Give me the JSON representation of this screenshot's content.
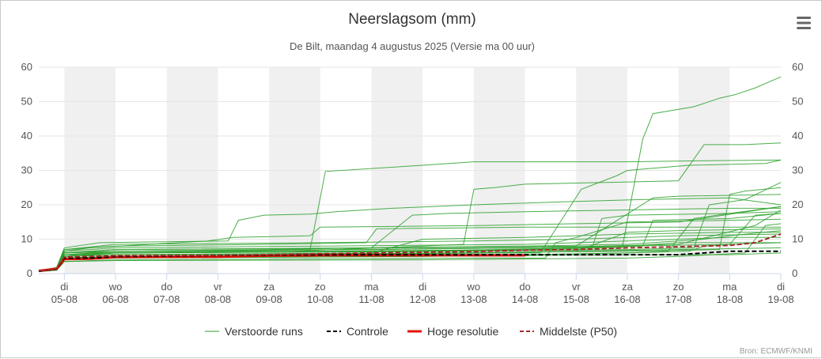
{
  "chart_data": {
    "type": "line",
    "title": "Neerslagsom (mm)",
    "subtitle": "De Bilt, maandag 4 augustus 2025 (Versie ma 00 uur)",
    "credit": "Bron: ECMWF/KNMI",
    "ylim": [
      0,
      60
    ],
    "yticks": [
      0,
      10,
      20,
      30,
      40,
      50,
      60
    ],
    "xlim": [
      4.5,
      19.0
    ],
    "x_labels": [
      {
        "day": "di",
        "date": "05-08",
        "x": 5
      },
      {
        "day": "wo",
        "date": "06-08",
        "x": 6
      },
      {
        "day": "do",
        "date": "07-08",
        "x": 7
      },
      {
        "day": "vr",
        "date": "08-08",
        "x": 8
      },
      {
        "day": "za",
        "date": "09-08",
        "x": 9
      },
      {
        "day": "zo",
        "date": "10-08",
        "x": 10
      },
      {
        "day": "ma",
        "date": "11-08",
        "x": 11
      },
      {
        "day": "di",
        "date": "12-08",
        "x": 12
      },
      {
        "day": "wo",
        "date": "13-08",
        "x": 13
      },
      {
        "day": "do",
        "date": "14-08",
        "x": 14
      },
      {
        "day": "vr",
        "date": "15-08",
        "x": 15
      },
      {
        "day": "za",
        "date": "16-08",
        "x": 16
      },
      {
        "day": "zo",
        "date": "17-08",
        "x": 17
      },
      {
        "day": "ma",
        "date": "18-08",
        "x": 18
      },
      {
        "day": "di",
        "date": "19-08",
        "x": 19
      }
    ],
    "shaded_day_starts": [
      5,
      7,
      9,
      11,
      13,
      15,
      17
    ],
    "legend": [
      {
        "name": "Verstoorde runs",
        "color": "#2ca02c",
        "style": "solid-thin"
      },
      {
        "name": "Controle",
        "color": "#000000",
        "style": "dashed"
      },
      {
        "name": "Hoge resolutie",
        "color": "#e3120b",
        "style": "solid-thick"
      },
      {
        "name": "Middelste (P50)",
        "color": "#a52a2a",
        "style": "dashed"
      }
    ],
    "colors": {
      "ensemble": "#2ca02c",
      "control": "#000000",
      "highres": "#e3120b",
      "median": "#a52a2a",
      "shade": "#f0f0f0",
      "grid": "#e6e6e6"
    },
    "ensemble": [
      [
        [
          4.5,
          0.8
        ],
        [
          4.85,
          1.5
        ],
        [
          5,
          6.5
        ],
        [
          5.5,
          7.5
        ],
        [
          7.8,
          9.5
        ],
        [
          8.3,
          10.5
        ],
        [
          9.8,
          11
        ],
        [
          10,
          13.5
        ],
        [
          13.2,
          14
        ],
        [
          15,
          14.5
        ],
        [
          17,
          15
        ],
        [
          19,
          19.5
        ]
      ],
      [
        [
          4.5,
          0.7
        ],
        [
          4.85,
          1.2
        ],
        [
          5,
          5
        ],
        [
          5.5,
          6
        ],
        [
          8.3,
          6.5
        ],
        [
          9.8,
          7
        ],
        [
          10.1,
          29.7
        ],
        [
          12,
          31.5
        ],
        [
          13,
          32.5
        ],
        [
          16,
          32.5
        ],
        [
          17.5,
          32.8
        ],
        [
          19,
          33
        ]
      ],
      [
        [
          4.5,
          0.9
        ],
        [
          4.85,
          1.8
        ],
        [
          5,
          7.5
        ],
        [
          5.7,
          9
        ],
        [
          8.2,
          9.5
        ],
        [
          8.4,
          15.5
        ],
        [
          8.9,
          17
        ],
        [
          9.8,
          17.3
        ],
        [
          10.3,
          18
        ],
        [
          11.4,
          19
        ],
        [
          13,
          20
        ],
        [
          15,
          21
        ],
        [
          16.2,
          21.5
        ],
        [
          18,
          22
        ],
        [
          19,
          20
        ]
      ],
      [
        [
          4.5,
          0.6
        ],
        [
          4.85,
          1
        ],
        [
          5,
          4.5
        ],
        [
          6,
          5
        ],
        [
          10,
          5.5
        ],
        [
          13.4,
          6
        ],
        [
          14.3,
          6
        ],
        [
          15.1,
          24.5
        ],
        [
          15.8,
          28.5
        ],
        [
          16,
          30
        ],
        [
          17.2,
          31.5
        ],
        [
          18.7,
          32
        ],
        [
          19,
          33
        ]
      ],
      [
        [
          4.5,
          0.8
        ],
        [
          4.85,
          1.4
        ],
        [
          5,
          5.5
        ],
        [
          6,
          6
        ],
        [
          11,
          6.5
        ],
        [
          14,
          7
        ],
        [
          15.6,
          7.5
        ],
        [
          15.9,
          7.5
        ],
        [
          16.3,
          39
        ],
        [
          16.5,
          46.5
        ],
        [
          17.3,
          48.5
        ],
        [
          17.8,
          51
        ],
        [
          18.1,
          52
        ],
        [
          18.5,
          54
        ],
        [
          19,
          57.2
        ]
      ],
      [
        [
          4.5,
          0.7
        ],
        [
          4.85,
          1.3
        ],
        [
          5,
          5
        ],
        [
          6,
          6
        ],
        [
          9.5,
          6.5
        ],
        [
          12,
          8
        ],
        [
          12.8,
          8.5
        ],
        [
          13,
          24.5
        ],
        [
          13.4,
          25
        ],
        [
          14,
          26
        ],
        [
          15.6,
          26.5
        ],
        [
          17,
          27
        ],
        [
          17.5,
          37.5
        ],
        [
          18.3,
          37.5
        ],
        [
          19,
          38
        ]
      ],
      [
        [
          4.5,
          0.6
        ],
        [
          4.85,
          1.1
        ],
        [
          5,
          4
        ],
        [
          6,
          4.5
        ],
        [
          12,
          5
        ],
        [
          14,
          5.5
        ],
        [
          16,
          6
        ],
        [
          16.8,
          6.5
        ],
        [
          17.3,
          16
        ],
        [
          18,
          17.5
        ],
        [
          19,
          18
        ]
      ],
      [
        [
          4.5,
          0.8
        ],
        [
          4.85,
          1.5
        ],
        [
          5,
          6
        ],
        [
          6,
          6.5
        ],
        [
          9,
          7
        ],
        [
          11,
          7.5
        ],
        [
          11.8,
          17
        ],
        [
          12.5,
          17.5
        ],
        [
          14,
          18
        ],
        [
          16,
          18.5
        ],
        [
          18,
          19
        ],
        [
          19,
          19
        ]
      ],
      [
        [
          4.5,
          0.7
        ],
        [
          4.85,
          1.2
        ],
        [
          5,
          5
        ],
        [
          6,
          5.5
        ],
        [
          11,
          6
        ],
        [
          12,
          10
        ],
        [
          14,
          10.5
        ],
        [
          16,
          11.5
        ],
        [
          18,
          12
        ],
        [
          19,
          12
        ]
      ],
      [
        [
          4.5,
          0.9
        ],
        [
          4.85,
          1.7
        ],
        [
          5,
          7
        ],
        [
          6,
          8
        ],
        [
          9,
          8.5
        ],
        [
          10.9,
          9
        ],
        [
          11.1,
          13
        ],
        [
          14,
          13.5
        ],
        [
          17,
          13.5
        ],
        [
          19,
          13.5
        ]
      ],
      [
        [
          4.5,
          0.6
        ],
        [
          4.85,
          1
        ],
        [
          5,
          3.5
        ],
        [
          6,
          4
        ],
        [
          13,
          4.5
        ],
        [
          14.4,
          4.5
        ],
        [
          14.6,
          9
        ],
        [
          15,
          10.5
        ],
        [
          16,
          15
        ],
        [
          18,
          15.5
        ],
        [
          19,
          15.8
        ]
      ],
      [
        [
          4.5,
          0.7
        ],
        [
          4.85,
          1.3
        ],
        [
          5,
          5.5
        ],
        [
          6,
          6
        ],
        [
          12,
          6.5
        ],
        [
          15.3,
          7
        ],
        [
          15.5,
          16
        ],
        [
          16,
          17
        ],
        [
          18,
          17.5
        ],
        [
          19,
          19.5
        ]
      ],
      [
        [
          4.5,
          0.8
        ],
        [
          4.85,
          1.4
        ],
        [
          5,
          5.5
        ],
        [
          6,
          6
        ],
        [
          13,
          6.5
        ],
        [
          16,
          7
        ],
        [
          17.3,
          7.5
        ],
        [
          17.6,
          20
        ],
        [
          18.3,
          21.5
        ],
        [
          19,
          26.5
        ]
      ],
      [
        [
          4.5,
          0.6
        ],
        [
          4.85,
          1.1
        ],
        [
          5,
          4.5
        ],
        [
          6,
          5
        ],
        [
          14,
          5.5
        ],
        [
          16,
          6
        ],
        [
          17.2,
          6.5
        ],
        [
          17.5,
          8
        ],
        [
          18,
          8.5
        ],
        [
          18.5,
          17
        ],
        [
          19,
          17.5
        ]
      ],
      [
        [
          4.5,
          0.7
        ],
        [
          4.85,
          1.3
        ],
        [
          5,
          5
        ],
        [
          6,
          5.5
        ],
        [
          12.5,
          6
        ],
        [
          16,
          6.5
        ],
        [
          17.8,
          7
        ],
        [
          18,
          23
        ],
        [
          18.3,
          24
        ],
        [
          19,
          25
        ]
      ],
      [
        [
          4.5,
          0.8
        ],
        [
          4.85,
          1.5
        ],
        [
          5,
          6
        ],
        [
          6,
          7
        ],
        [
          11,
          7.5
        ],
        [
          14,
          8
        ],
        [
          16,
          8.5
        ],
        [
          17.5,
          10
        ],
        [
          18,
          11
        ],
        [
          19,
          12.5
        ]
      ],
      [
        [
          4.5,
          0.6
        ],
        [
          4.85,
          1
        ],
        [
          5,
          3.5
        ],
        [
          6,
          3.8
        ],
        [
          12,
          4
        ],
        [
          16,
          4.5
        ],
        [
          17,
          5
        ],
        [
          18.3,
          6
        ],
        [
          18.7,
          14
        ],
        [
          19,
          14.5
        ]
      ],
      [
        [
          4.5,
          0.7
        ],
        [
          4.85,
          1.2
        ],
        [
          5,
          4.5
        ],
        [
          6,
          5
        ],
        [
          10,
          5.5
        ],
        [
          13,
          6
        ],
        [
          15,
          6.5
        ],
        [
          16,
          12
        ],
        [
          17,
          12.5
        ],
        [
          19,
          13
        ]
      ],
      [
        [
          4.5,
          0.8
        ],
        [
          4.85,
          1.5
        ],
        [
          5,
          6.5
        ],
        [
          6,
          7.5
        ],
        [
          10,
          8
        ],
        [
          14,
          8.5
        ],
        [
          16,
          9.5
        ],
        [
          17,
          10
        ],
        [
          18,
          10.5
        ],
        [
          19,
          10.5
        ]
      ],
      [
        [
          4.5,
          0.7
        ],
        [
          4.85,
          1.3
        ],
        [
          5,
          5
        ],
        [
          6,
          6
        ],
        [
          10,
          6.5
        ],
        [
          14,
          7
        ],
        [
          16,
          8
        ],
        [
          17,
          9
        ],
        [
          18,
          9
        ],
        [
          19,
          9
        ]
      ],
      [
        [
          4.5,
          0.6
        ],
        [
          4.85,
          1.1
        ],
        [
          5,
          4
        ],
        [
          6,
          4.5
        ],
        [
          12,
          5
        ],
        [
          16,
          5.5
        ],
        [
          18,
          5.5
        ],
        [
          19,
          6
        ]
      ],
      [
        [
          4.5,
          0.9
        ],
        [
          4.85,
          1.6
        ],
        [
          5,
          7
        ],
        [
          6,
          8.5
        ],
        [
          10,
          9
        ],
        [
          13,
          9.5
        ],
        [
          15,
          10
        ],
        [
          17,
          11
        ],
        [
          19,
          11.5
        ]
      ],
      [
        [
          4.5,
          0.7
        ],
        [
          4.85,
          1.3
        ],
        [
          5,
          5.5
        ],
        [
          6,
          6
        ],
        [
          12,
          6.5
        ],
        [
          15,
          7.5
        ],
        [
          16.3,
          8
        ],
        [
          16.5,
          15.5
        ],
        [
          18,
          16
        ],
        [
          19,
          17.5
        ]
      ],
      [
        [
          4.5,
          0.8
        ],
        [
          4.85,
          1.4
        ],
        [
          5,
          6
        ],
        [
          6,
          6.5
        ],
        [
          11,
          7
        ],
        [
          14,
          7.5
        ],
        [
          16,
          8
        ],
        [
          18,
          8.5
        ],
        [
          19,
          9
        ]
      ],
      [
        [
          4.5,
          0.6
        ],
        [
          4.85,
          1.1
        ],
        [
          5,
          5
        ],
        [
          6,
          5.5
        ],
        [
          13,
          6
        ],
        [
          15,
          6.5
        ],
        [
          17,
          7
        ],
        [
          19,
          7.5
        ]
      ],
      [
        [
          4.5,
          0.7
        ],
        [
          4.85,
          1.2
        ],
        [
          5,
          5.5
        ],
        [
          6,
          6.5
        ],
        [
          11,
          7
        ],
        [
          14,
          7.5
        ],
        [
          17,
          8.5
        ],
        [
          18.5,
          14
        ],
        [
          19,
          18.5
        ]
      ],
      [
        [
          4.5,
          0.8
        ],
        [
          4.85,
          1.5
        ],
        [
          5,
          6
        ],
        [
          6,
          7
        ],
        [
          12,
          7.5
        ],
        [
          15,
          8
        ],
        [
          16.5,
          22
        ],
        [
          17,
          22.5
        ],
        [
          19,
          23
        ]
      ]
    ],
    "control": [
      [
        4.5,
        0.7
      ],
      [
        4.85,
        1.3
      ],
      [
        5,
        4.5
      ],
      [
        5.5,
        4.5
      ],
      [
        6,
        5
      ],
      [
        10,
        5.5
      ],
      [
        13,
        5.5
      ],
      [
        14,
        5.5
      ],
      [
        15,
        5.5
      ],
      [
        16.2,
        5.5
      ],
      [
        17,
        5.5
      ],
      [
        17.5,
        6
      ],
      [
        18,
        6.5
      ],
      [
        19,
        6.5
      ]
    ],
    "highres": [
      [
        4.5,
        0.8
      ],
      [
        4.85,
        1.4
      ],
      [
        5,
        4.2
      ],
      [
        5.5,
        4.3
      ],
      [
        6,
        4.8
      ],
      [
        8,
        4.9
      ],
      [
        9,
        5.2
      ],
      [
        10,
        5.3
      ],
      [
        13,
        5.3
      ],
      [
        14,
        5.3
      ]
    ],
    "median": [
      [
        4.5,
        0.8
      ],
      [
        4.85,
        1.4
      ],
      [
        5,
        4.8
      ],
      [
        5.5,
        5
      ],
      [
        6,
        5.2
      ],
      [
        8,
        5.3
      ],
      [
        9,
        5.5
      ],
      [
        10,
        5.8
      ],
      [
        11,
        6
      ],
      [
        12,
        6.2
      ],
      [
        13,
        6.4
      ],
      [
        14,
        6.8
      ],
      [
        15,
        7
      ],
      [
        16,
        7.5
      ],
      [
        17,
        7.8
      ],
      [
        18,
        8.2
      ],
      [
        18.5,
        9
      ],
      [
        19,
        11.5
      ]
    ]
  }
}
